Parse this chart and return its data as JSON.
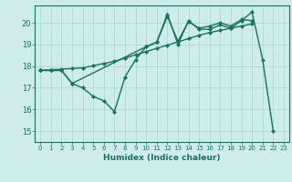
{
  "background_color": "#cdecea",
  "grid_color": "#b0d8d0",
  "line_color": "#1a7060",
  "marker": "D",
  "markersize": 2.5,
  "linewidth": 1.0,
  "xlabel": "Humidex (Indice chaleur)",
  "xlabel_fontsize": 6.5,
  "ytick_fontsize": 6,
  "xtick_fontsize": 5,
  "ylim": [
    14.5,
    20.8
  ],
  "xlim": [
    -0.5,
    23.5
  ],
  "series1_x": [
    0,
    1,
    2,
    3,
    4,
    5,
    6,
    7,
    8,
    9,
    10,
    11,
    12,
    13,
    14,
    15,
    16,
    17,
    18,
    19,
    20,
    21,
    22
  ],
  "series1_y": [
    17.8,
    17.8,
    17.8,
    17.2,
    17.0,
    16.6,
    16.4,
    15.9,
    17.5,
    18.3,
    18.9,
    19.1,
    20.4,
    19.0,
    20.1,
    19.7,
    19.7,
    19.9,
    19.75,
    20.1,
    20.5,
    18.3,
    15.0
  ],
  "series2_x": [
    0,
    1,
    2,
    3,
    4,
    5,
    6,
    7,
    8,
    9,
    10,
    11,
    12,
    13,
    14,
    15,
    16,
    17,
    18,
    19,
    20
  ],
  "series2_y": [
    17.8,
    17.83,
    17.86,
    17.89,
    17.92,
    18.02,
    18.12,
    18.22,
    18.37,
    18.52,
    18.67,
    18.82,
    18.97,
    19.12,
    19.27,
    19.42,
    19.55,
    19.65,
    19.75,
    19.85,
    19.95
  ],
  "series3_x": [
    0,
    1,
    2,
    3,
    10,
    11,
    12,
    13,
    14,
    15,
    16,
    17,
    18,
    19,
    20
  ],
  "series3_y": [
    17.8,
    17.8,
    17.8,
    17.2,
    18.9,
    19.1,
    20.3,
    19.15,
    20.05,
    19.75,
    19.85,
    20.0,
    19.85,
    20.15,
    20.1
  ]
}
